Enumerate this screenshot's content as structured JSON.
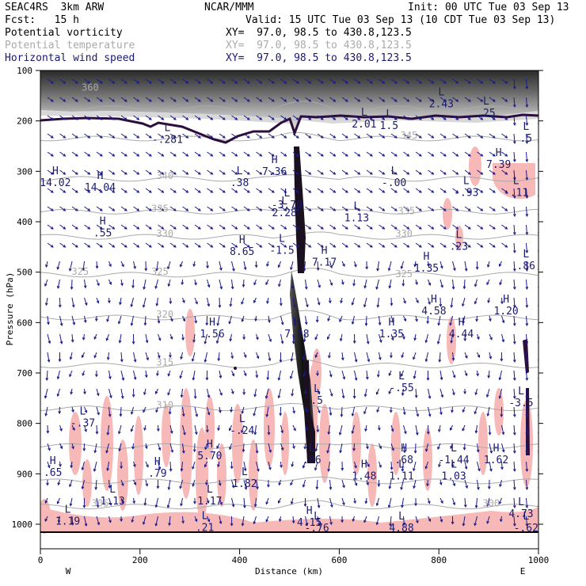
{
  "header": {
    "model": "SEAC4RS  3km ARW",
    "org": "NCAR/MMM",
    "init": "Init: 00 UTC Tue 03 Sep 13",
    "fcst": "Fcst:   15 h",
    "valid": "Valid: 15 UTC Tue 03 Sep 13 (10 CDT Tue 03 Sep 13)",
    "fields": [
      {
        "name": "Potential vorticity",
        "xy": "XY=  97.0, 98.5 to 430.8,123.5",
        "color": "#000000"
      },
      {
        "name": "Potential temperature",
        "xy": "XY=  97.0, 98.5 to 430.8,123.5",
        "color": "#aaaaaa"
      },
      {
        "name": "Horizontal wind speed",
        "xy": "XY=  97.0, 98.5 to 430.8,123.5",
        "color": "#1a1a6e"
      }
    ]
  },
  "chart_data": {
    "type": "cross-section",
    "xlabel": "Distance (km)",
    "ylabel": "Pressure (hPa)",
    "xlim": [
      0,
      1000
    ],
    "ylim": [
      1000,
      100
    ],
    "x_ticks": [
      0,
      200,
      400,
      600,
      800,
      1000
    ],
    "y_ticks": [
      100,
      200,
      300,
      400,
      500,
      600,
      700,
      800,
      900,
      1000
    ],
    "left_end_label": "W",
    "right_end_label": "E",
    "colors": {
      "theta": "#aaaaaa",
      "pv_positive": "#f7b8b8",
      "pv_strong": "#111111",
      "wind": "#1a1a8a",
      "tropopause": "#2b0f3a"
    },
    "theta_contours": [
      {
        "value": "360",
        "x": 100,
        "p": 140
      },
      {
        "value": "345",
        "x": 740,
        "p": 235
      },
      {
        "value": "340",
        "x": 250,
        "p": 315
      },
      {
        "value": "335",
        "x": 240,
        "p": 380
      },
      {
        "value": "335",
        "x": 735,
        "p": 385
      },
      {
        "value": "330",
        "x": 250,
        "p": 430
      },
      {
        "value": "330",
        "x": 730,
        "p": 430
      },
      {
        "value": "325",
        "x": 80,
        "p": 505
      },
      {
        "value": "325",
        "x": 240,
        "p": 505
      },
      {
        "value": "325",
        "x": 730,
        "p": 510
      },
      {
        "value": "320",
        "x": 250,
        "p": 590
      },
      {
        "value": "315",
        "x": 250,
        "p": 685
      },
      {
        "value": "310",
        "x": 250,
        "p": 770
      },
      {
        "value": "305",
        "x": 120,
        "p": 965
      },
      {
        "value": "300",
        "x": 905,
        "p": 965
      }
    ],
    "extrema": [
      {
        "kind": "H",
        "value": "14.02",
        "x": 30,
        "p": 318
      },
      {
        "kind": "H",
        "value": "14.04",
        "x": 120,
        "p": 328
      },
      {
        "kind": "H",
        "value": ".55",
        "x": 125,
        "p": 418
      },
      {
        "kind": "L",
        "value": "-.37",
        "x": 85,
        "p": 795
      },
      {
        "kind": "H",
        "value": ".65",
        "x": 25,
        "p": 893
      },
      {
        "kind": "L",
        "value": "1.13",
        "x": 145,
        "p": 950
      },
      {
        "kind": "L",
        "value": "1.19",
        "x": 55,
        "p": 990
      },
      {
        "kind": "L",
        "value": "-.281",
        "x": 255,
        "p": 233
      },
      {
        "kind": "L",
        "value": ".38",
        "x": 400,
        "p": 318
      },
      {
        "kind": "H",
        "value": "8.65",
        "x": 405,
        "p": 455
      },
      {
        "kind": "H",
        "value": "1.56",
        "x": 345,
        "p": 618
      },
      {
        "kind": "L",
        "value": "-.24",
        "x": 405,
        "p": 810
      },
      {
        "kind": "H",
        "value": "5.70",
        "x": 340,
        "p": 860
      },
      {
        "kind": "H",
        "value": ".79",
        "x": 235,
        "p": 895
      },
      {
        "kind": "L",
        "value": "1.82",
        "x": 410,
        "p": 915
      },
      {
        "kind": "L",
        "value": "1.17",
        "x": 340,
        "p": 950
      },
      {
        "kind": "L",
        "value": ".21",
        "x": 330,
        "p": 1002
      },
      {
        "kind": "H",
        "value": "7.36",
        "x": 470,
        "p": 296
      },
      {
        "kind": "L",
        "value": "-3.70",
        "x": 495,
        "p": 362
      },
      {
        "kind": "L",
        "value": "2.28",
        "x": 490,
        "p": 378
      },
      {
        "kind": "L",
        "value": "-1.5",
        "x": 485,
        "p": 453
      },
      {
        "kind": "H",
        "value": "7.17",
        "x": 570,
        "p": 476
      },
      {
        "kind": "H",
        "value": "7.28",
        "x": 515,
        "p": 618
      },
      {
        "kind": "L",
        "value": ".5",
        "x": 555,
        "p": 750
      },
      {
        "kind": "L",
        "value": ".86",
        "x": 545,
        "p": 868
      },
      {
        "kind": "H",
        "value": "4.15",
        "x": 540,
        "p": 992
      },
      {
        "kind": "L",
        "value": "-.76",
        "x": 555,
        "p": 1003
      },
      {
        "kind": "L",
        "value": "2.01",
        "x": 650,
        "p": 202
      },
      {
        "kind": "L",
        "value": "1.5",
        "x": 700,
        "p": 205
      },
      {
        "kind": "L",
        "value": "-.00",
        "x": 710,
        "p": 318
      },
      {
        "kind": "L",
        "value": "1.13",
        "x": 635,
        "p": 388
      },
      {
        "kind": "H",
        "value": "1.35",
        "x": 705,
        "p": 618
      },
      {
        "kind": "L",
        "value": "-.55",
        "x": 725,
        "p": 725
      },
      {
        "kind": "H",
        "value": ".68",
        "x": 730,
        "p": 868
      },
      {
        "kind": "H",
        "value": "1.48",
        "x": 650,
        "p": 900
      },
      {
        "kind": "L",
        "value": "1.11",
        "x": 725,
        "p": 900
      },
      {
        "kind": "H",
        "value": "1.35",
        "x": 775,
        "p": 488
      },
      {
        "kind": "H",
        "value": "4.58",
        "x": 790,
        "p": 573
      },
      {
        "kind": "L",
        "value": ".23",
        "x": 840,
        "p": 445
      },
      {
        "kind": "H",
        "value": "4.44",
        "x": 845,
        "p": 618
      },
      {
        "kind": "L",
        "value": "2.43",
        "x": 805,
        "p": 162
      },
      {
        "kind": "L",
        "value": ".25",
        "x": 895,
        "p": 180
      },
      {
        "kind": "L",
        "value": "-.93",
        "x": 855,
        "p": 338
      },
      {
        "kind": "H",
        "value": "7.39",
        "x": 920,
        "p": 282
      },
      {
        "kind": "L",
        "value": "-.11",
        "x": 955,
        "p": 338
      },
      {
        "kind": "L",
        "value": ".86",
        "x": 975,
        "p": 483
      },
      {
        "kind": "H",
        "value": "1.20",
        "x": 935,
        "p": 573
      },
      {
        "kind": "L",
        "value": "-3.5",
        "x": 965,
        "p": 755
      },
      {
        "kind": "L",
        "value": "-1.44",
        "x": 830,
        "p": 868
      },
      {
        "kind": "L",
        "value": "1.03",
        "x": 830,
        "p": 900
      },
      {
        "kind": "H",
        "value": "1.62",
        "x": 915,
        "p": 868
      },
      {
        "kind": "L",
        "value": "4.73",
        "x": 965,
        "p": 975
      },
      {
        "kind": "L",
        "value": "-.62",
        "x": 975,
        "p": 1003
      },
      {
        "kind": "L",
        "value": ".5",
        "x": 975,
        "p": 230
      },
      {
        "kind": "L",
        "value": "4.88",
        "x": 725,
        "p": 1003
      }
    ]
  }
}
